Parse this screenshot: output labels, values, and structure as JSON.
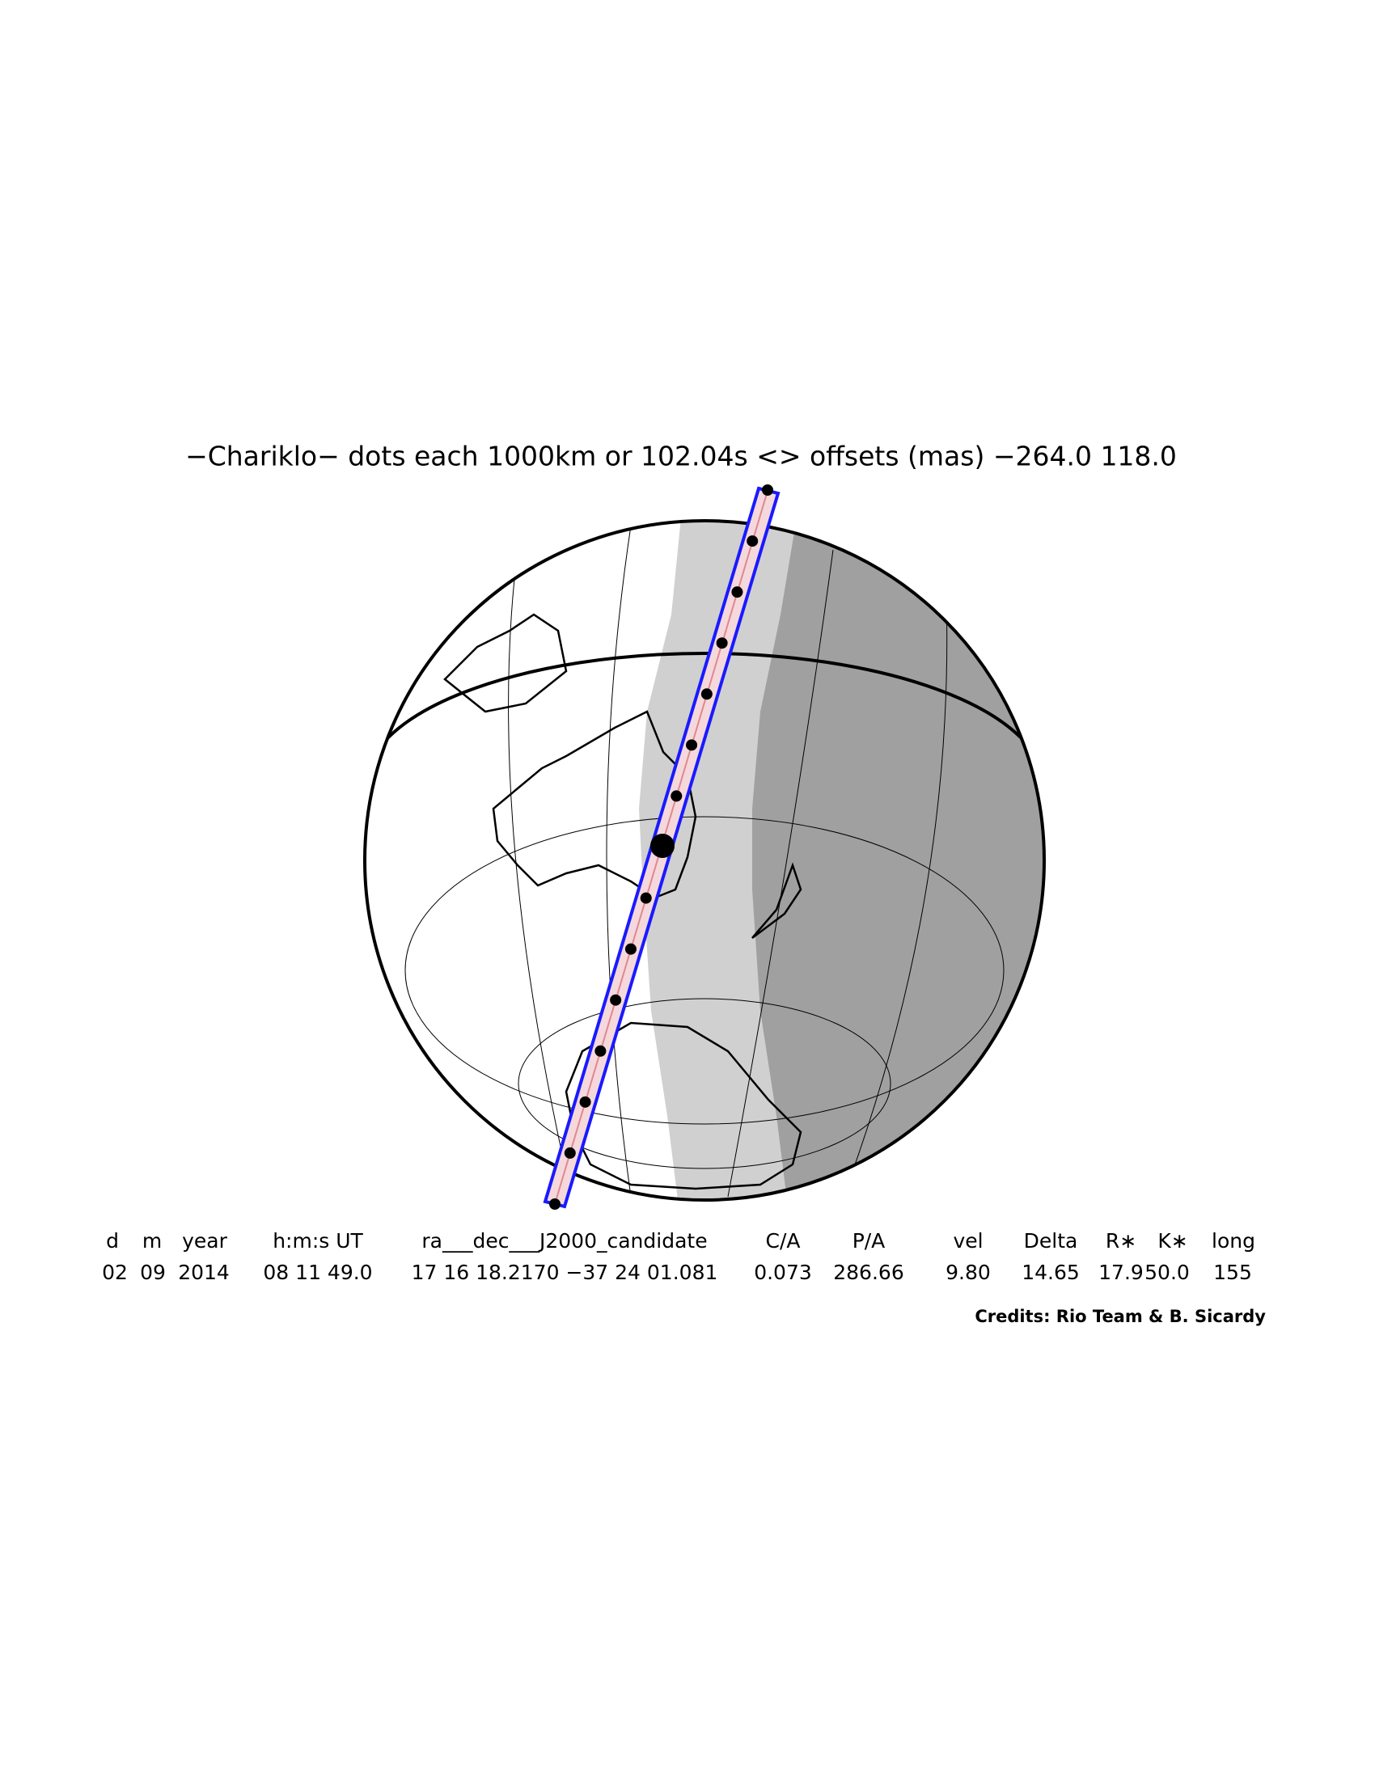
{
  "title": "−Chariklo− dots each 1000km or 102.04s <> offsets (mas) −264.0   118.0",
  "table": {
    "headers": [
      "d",
      "m",
      "year",
      "h:m:s UT",
      "ra___dec___J2000_candidate",
      "C/A",
      "P/A",
      "vel",
      "Delta",
      "R∗",
      "K∗",
      "long"
    ],
    "values": [
      "02",
      "09",
      "2014",
      "08 11 49.0",
      "17 16 18.2170 −37 24 01.081",
      "0.073",
      "286.66",
      "9.80",
      "14.65",
      "17.9",
      "50.0",
      "155"
    ]
  },
  "credits": "Credits: Rio Team & B. Sicardy"
}
